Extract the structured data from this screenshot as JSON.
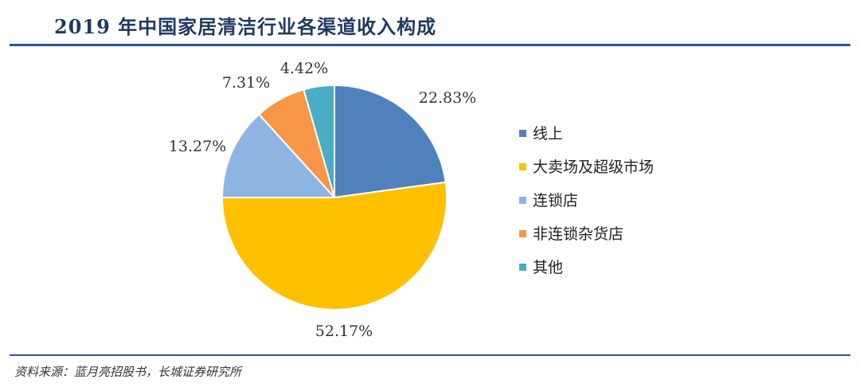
{
  "title": "2019 年中国家居清洁行业各渠道收入构成",
  "source": "资料来源：蓝月亮招股书，长城证券研究所",
  "chart_data": {
    "type": "pie",
    "title": "2019 年中国家居清洁行业各渠道收入构成",
    "legend_position": "right",
    "slices": [
      {
        "name": "线上",
        "value": 22.83,
        "label": "22.83%",
        "color": "#4f81bd"
      },
      {
        "name": "大卖场及超级市场",
        "value": 52.17,
        "label": "52.17%",
        "color": "#ffc000"
      },
      {
        "name": "连锁店",
        "value": 13.27,
        "label": "13.27%",
        "color": "#8eb4e3"
      },
      {
        "name": "非连锁杂货店",
        "value": 7.31,
        "label": "7.31%",
        "color": "#f79646"
      },
      {
        "name": "其他",
        "value": 4.42,
        "label": "4.42%",
        "color": "#4bacc6"
      }
    ]
  }
}
